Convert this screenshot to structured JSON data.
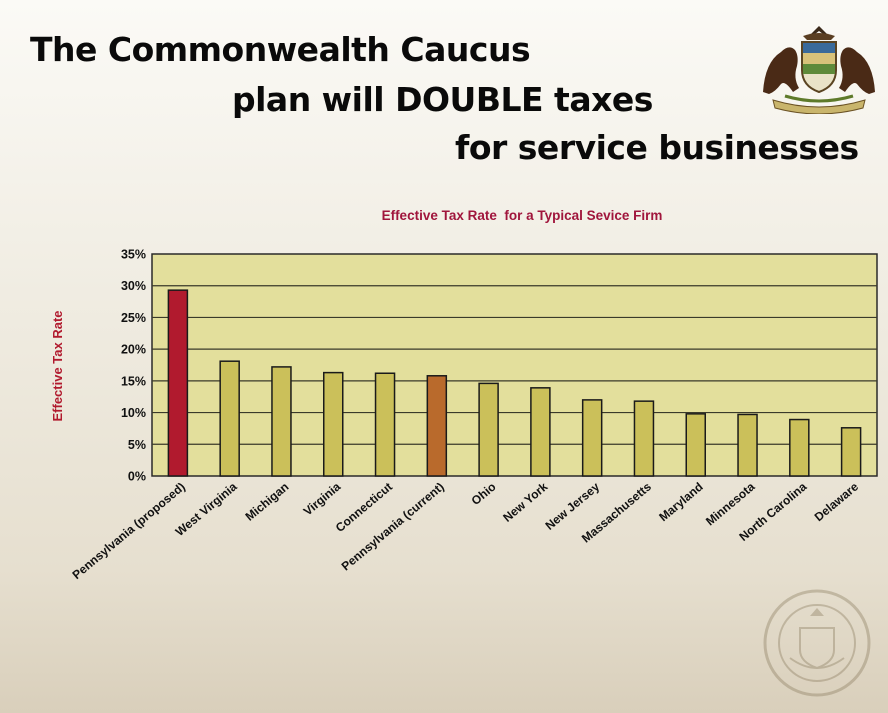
{
  "page": {
    "title_lines": [
      "The Commonwealth Caucus",
      "plan will DOUBLE taxes",
      "for service businesses"
    ],
    "crest_icon": "pennsylvania-coat-of-arms-icon",
    "seal_icon": "house-of-representatives-seal-icon"
  },
  "colors": {
    "plot_background": "#e3df9c",
    "bar_default": "#cbc05a",
    "bar_proposed": "#b11a2e",
    "bar_current": "#b96a2c",
    "chart_title": "#a0153c",
    "axis_label": "#b11a2e"
  },
  "chart_data": {
    "type": "bar",
    "title": "Effective Tax Rate  for a Typical Sevice Firm",
    "ylabel": "Effective Tax Rate",
    "xlabel": "",
    "ylim": [
      0,
      35
    ],
    "yticks": [
      "0%",
      "5%",
      "10%",
      "15%",
      "20%",
      "25%",
      "30%",
      "35%"
    ],
    "grid": true,
    "categories": [
      "Pennsylvania (proposed)",
      "West Virginia",
      "Michigan",
      "Virginia",
      "Connecticut",
      "Pennsylvania (current)",
      "Ohio",
      "New York",
      "New Jersey",
      "Massachusetts",
      "Maryland",
      "Minnesota",
      "North Carolina",
      "Delaware"
    ],
    "values": [
      29.3,
      18.1,
      17.2,
      16.3,
      16.2,
      15.8,
      14.6,
      13.9,
      12.0,
      11.8,
      9.8,
      9.7,
      8.9,
      7.6
    ],
    "highlight": {
      "Pennsylvania (proposed)": "bar_proposed",
      "Pennsylvania (current)": "bar_current"
    }
  }
}
